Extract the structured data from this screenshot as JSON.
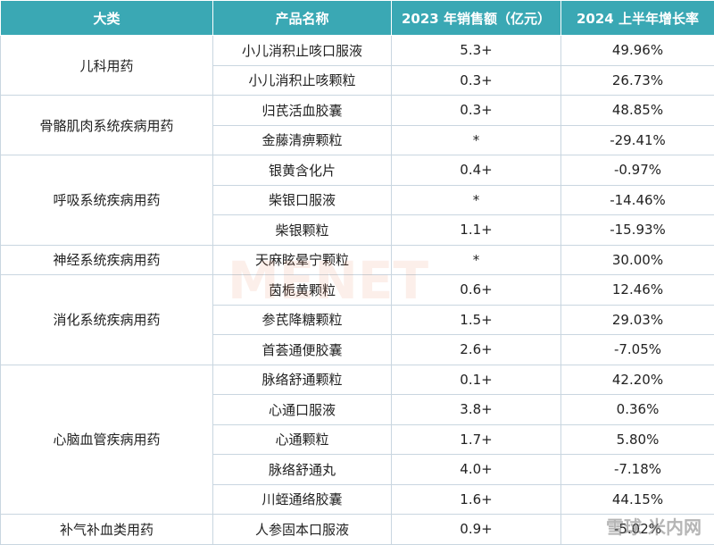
{
  "header": [
    "大类",
    "产品名称",
    "2023 年销售额（亿元）",
    "2024 上半年增长率"
  ],
  "groups": [
    {
      "category": "儿科用药",
      "rows": [
        [
          "小儿消积止咳口服液",
          "5.3+",
          "49.96%"
        ],
        [
          "小儿消积止咳颗粒",
          "0.3+",
          "26.73%"
        ]
      ]
    },
    {
      "category": "骨骼肌肉系统疾病用药",
      "rows": [
        [
          "归芪活血胶囊",
          "0.3+",
          "48.85%"
        ],
        [
          "金藤清痹颗粒",
          "*",
          "-29.41%"
        ]
      ]
    },
    {
      "category": "呼吸系统疾病用药",
      "rows": [
        [
          "银黄含化片",
          "0.4+",
          "-0.97%"
        ],
        [
          "柴银口服液",
          "*",
          "-14.46%"
        ],
        [
          "柴银颗粒",
          "1.1+",
          "-15.93%"
        ]
      ]
    },
    {
      "category": "神经系统疾病用药",
      "rows": [
        [
          "天麻眩晕宁颗粒",
          "*",
          "30.00%"
        ]
      ]
    },
    {
      "category": "消化系统疾病用药",
      "rows": [
        [
          "茵栀黄颗粒",
          "0.6+",
          "12.46%"
        ],
        [
          "参芪降糖颗粒",
          "1.5+",
          "29.03%"
        ],
        [
          "首荟通便胶囊",
          "2.6+",
          "-7.05%"
        ]
      ]
    },
    {
      "category": "心脑血管疾病用药",
      "rows": [
        [
          "脉络舒通颗粒",
          "0.1+",
          "42.20%"
        ],
        [
          "心通口服液",
          "3.8+",
          "0.36%"
        ],
        [
          "心通颗粒",
          "1.7+",
          "5.80%"
        ],
        [
          "脉络舒通丸",
          "4.0+",
          "-7.18%"
        ],
        [
          "川蛭通络胶囊",
          "1.6+",
          "44.15%"
        ]
      ]
    },
    {
      "category": "补气补血类用药",
      "rows": [
        [
          "人参固本口服液",
          "0.9+",
          "-5.02%"
        ]
      ]
    }
  ],
  "watermark": "MENET",
  "logo": "雪球 米内网"
}
